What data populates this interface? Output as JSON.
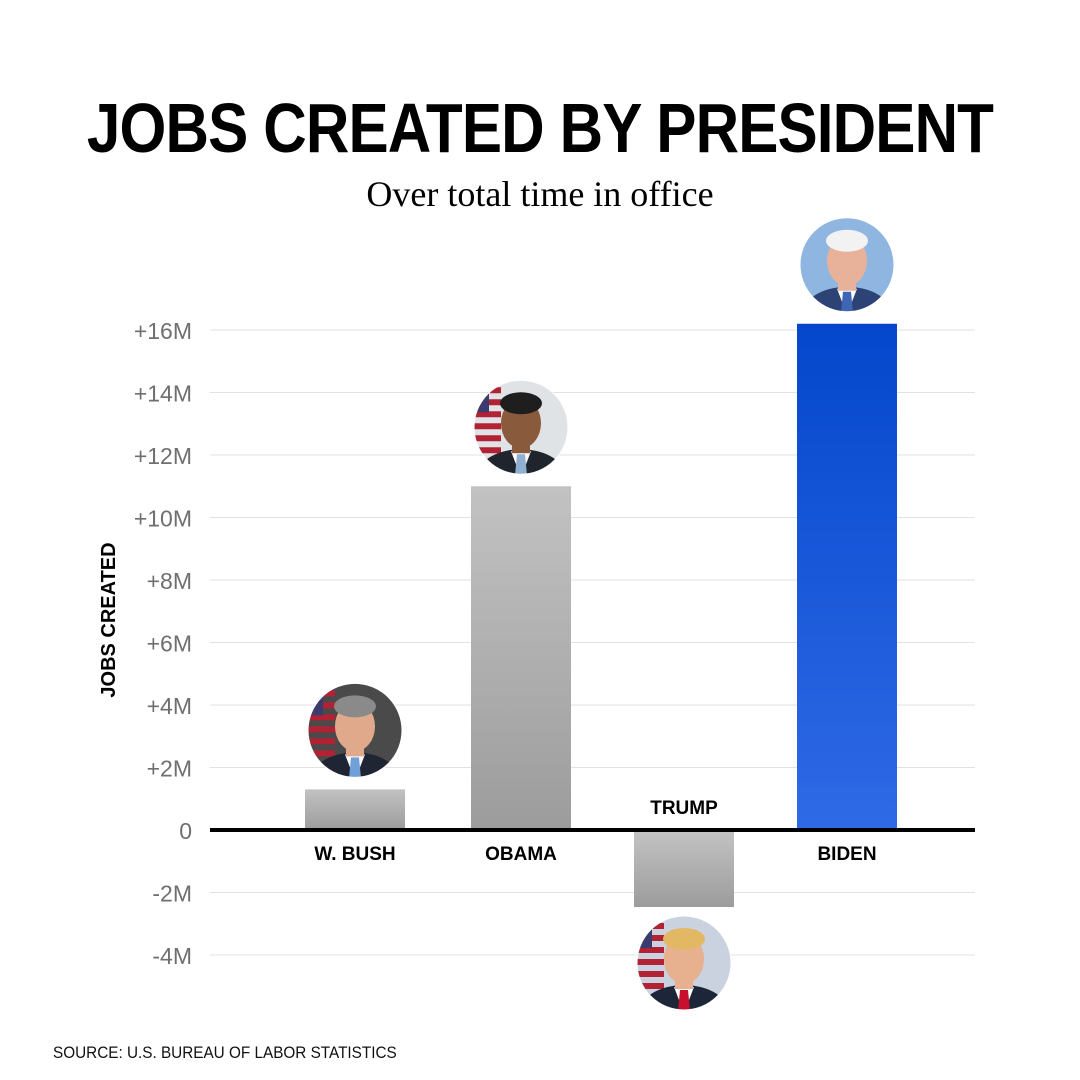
{
  "chart_data": {
    "type": "bar",
    "title": "JOBS CREATED BY PRESIDENT",
    "subtitle": "Over total time in office",
    "ylabel": "JOBS CREATED",
    "xlabel": "",
    "categories": [
      "W. BUSH",
      "OBAMA",
      "TRUMP",
      "BIDEN"
    ],
    "values": [
      1.3,
      11.0,
      -2.4,
      16.2
    ],
    "unit": "M",
    "ylim": [
      -4.5,
      16.8
    ],
    "yticks": [
      16,
      14,
      12,
      10,
      8,
      6,
      4,
      2,
      0,
      -2,
      -4
    ],
    "ytick_labels": [
      "+16M",
      "+14M",
      "+12M",
      "+10M",
      "+8M",
      "+6M",
      "+4M",
      "+2M",
      "0",
      "-2M",
      "-4M"
    ],
    "grid": true,
    "legend": "none",
    "colors": {
      "default_bar_top": "#c2c2c2",
      "default_bar_bottom": "#9c9c9c",
      "highlight_bar_top": "#0447cc",
      "highlight_bar_bottom": "#2f6ae6",
      "highlight_category": "BIDEN",
      "zero_line": "#000000",
      "grid": "#e2e2e2",
      "tick_label": "#6f6f6f"
    },
    "portrait_icons": [
      "bush-portrait-icon",
      "obama-portrait-icon",
      "trump-portrait-icon",
      "biden-portrait-icon"
    ]
  },
  "source": "SOURCE: U.S. BUREAU OF LABOR STATISTICS"
}
